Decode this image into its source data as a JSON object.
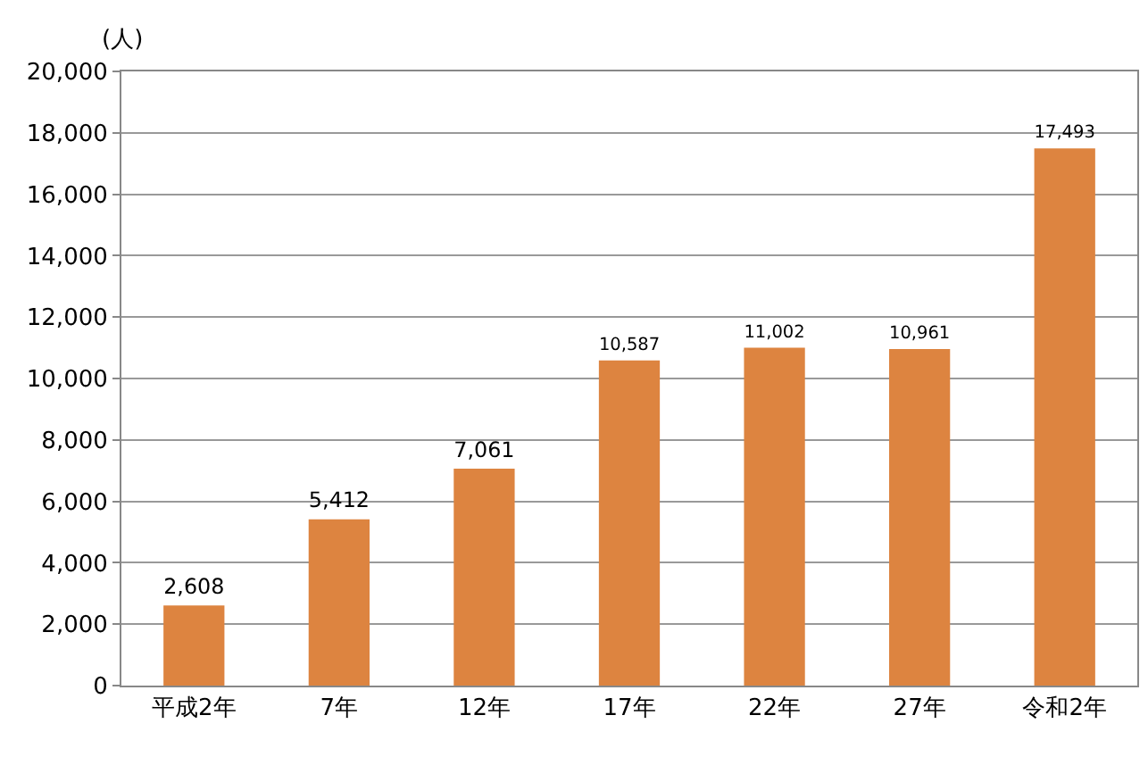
{
  "chart_data": {
    "type": "bar",
    "ylabel": "(人)",
    "categories": [
      "平成2年",
      "7年",
      "12年",
      "17年",
      "22年",
      "27年",
      "令和2年"
    ],
    "values": [
      2608,
      5412,
      7061,
      10587,
      11002,
      10961,
      17493
    ],
    "color": "#dd8440",
    "ylim": [
      0,
      20000
    ],
    "yticks": [
      0,
      {
        "value": 2000,
        "label": "2,000"
      },
      {
        "value": 4000,
        "label": "4,000"
      },
      {
        "value": 6000,
        "label": "6,000"
      },
      {
        "value": 8000,
        "label": "8,000"
      },
      {
        "value": 10000,
        "label": "10,000"
      },
      {
        "value": 12000,
        "label": "12,000"
      },
      {
        "value": 14000,
        "label": "14,000"
      },
      {
        "value": 16000,
        "label": "16,000"
      },
      {
        "value": 18000,
        "label": "18,000"
      },
      {
        "value": 20000,
        "label": "20,000"
      }
    ],
    "value_labels": [
      "2,608",
      "5,412",
      "7,061",
      "10,587",
      "11,002",
      "10,961",
      "17,493"
    ],
    "grid": "y"
  }
}
